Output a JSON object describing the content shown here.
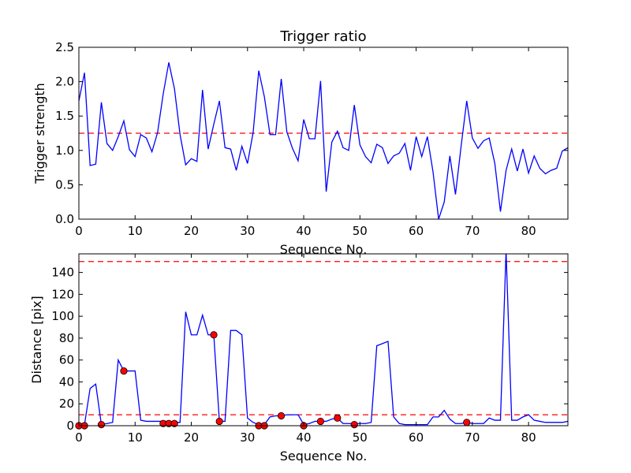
{
  "chart_data": [
    {
      "type": "line",
      "title": "Trigger ratio",
      "xlabel": "Sequence No.",
      "ylabel": "Trigger strength",
      "xlim": [
        0,
        87
      ],
      "ylim": [
        0,
        2.5
      ],
      "xticks": [
        "0",
        "10",
        "20",
        "30",
        "40",
        "50",
        "60",
        "70",
        "80"
      ],
      "yticks": [
        "0.0",
        "0.5",
        "1.0",
        "1.5",
        "2.0",
        "2.5"
      ],
      "grid": false,
      "colors": {
        "line": "#0000ff",
        "threshold": "#ff0000"
      },
      "threshold": 1.25,
      "series": [
        {
          "x": [
            0,
            1,
            2,
            3,
            4,
            5,
            6,
            7,
            8,
            9,
            10,
            11,
            12,
            13,
            14,
            15,
            16,
            17,
            18,
            19,
            20,
            21,
            22,
            23,
            24,
            25,
            26,
            27,
            28,
            29,
            30,
            31,
            32,
            33,
            34,
            35,
            36,
            37,
            38,
            39,
            40,
            41,
            42,
            43,
            44,
            45,
            46,
            47,
            48,
            49,
            50,
            51,
            52,
            53,
            54,
            55,
            56,
            57,
            58,
            59,
            60,
            61,
            62,
            63,
            64,
            65,
            66,
            67,
            68,
            69,
            70,
            71,
            72,
            73,
            74,
            75,
            76,
            77,
            78,
            79,
            80,
            81,
            82,
            83,
            84,
            85,
            86,
            87
          ],
          "values": [
            1.72,
            2.13,
            0.78,
            0.8,
            1.7,
            1.1,
            1.0,
            1.2,
            1.43,
            1.01,
            0.91,
            1.23,
            1.18,
            0.98,
            1.26,
            1.82,
            2.28,
            1.9,
            1.23,
            0.79,
            0.88,
            0.84,
            1.88,
            1.02,
            1.38,
            1.72,
            1.04,
            1.02,
            0.71,
            1.06,
            0.81,
            1.26,
            2.16,
            1.78,
            1.23,
            1.23,
            2.04,
            1.27,
            1.03,
            0.85,
            1.45,
            1.17,
            1.17,
            2.01,
            0.4,
            1.12,
            1.28,
            1.04,
            1.0,
            1.66,
            1.08,
            0.91,
            0.82,
            1.09,
            1.04,
            0.81,
            0.92,
            0.96,
            1.1,
            0.71,
            1.2,
            0.91,
            1.2,
            0.69,
            0.0,
            0.25,
            0.92,
            0.36,
            1.06,
            1.72,
            1.18,
            1.03,
            1.14,
            1.18,
            0.81,
            0.11,
            0.71,
            1.02,
            0.7,
            1.02,
            0.67,
            0.92,
            0.74,
            0.66,
            0.71,
            0.74,
            0.99,
            1.04
          ]
        }
      ]
    },
    {
      "type": "line",
      "title": "",
      "xlabel": "Sequence No.",
      "ylabel": "Distance [pix]",
      "xlim": [
        0,
        87
      ],
      "ylim": [
        0,
        157
      ],
      "xticks": [
        "0",
        "10",
        "20",
        "30",
        "40",
        "50",
        "60",
        "70",
        "80"
      ],
      "yticks": [
        "0",
        "20",
        "40",
        "60",
        "80",
        "100",
        "120",
        "140"
      ],
      "grid": false,
      "colors": {
        "line": "#0000ff",
        "threshold": "#ff0000",
        "marker": "#ff0000"
      },
      "thresholds": [
        150,
        10
      ],
      "series": [
        {
          "x": [
            0,
            1,
            2,
            3,
            4,
            5,
            6,
            7,
            8,
            9,
            10,
            11,
            12,
            13,
            14,
            15,
            16,
            17,
            18,
            19,
            20,
            21,
            22,
            23,
            24,
            25,
            26,
            27,
            28,
            29,
            30,
            31,
            32,
            33,
            34,
            35,
            36,
            37,
            38,
            39,
            40,
            41,
            42,
            43,
            44,
            45,
            46,
            47,
            48,
            49,
            50,
            51,
            52,
            53,
            54,
            55,
            56,
            57,
            58,
            59,
            60,
            61,
            62,
            63,
            64,
            65,
            66,
            67,
            68,
            69,
            70,
            71,
            72,
            73,
            74,
            75,
            76,
            77,
            78,
            79,
            80,
            81,
            82,
            83,
            84,
            85,
            86,
            87
          ],
          "values": [
            1,
            1,
            34,
            38,
            1,
            2,
            3,
            60,
            50,
            50,
            50,
            5,
            4,
            4,
            4,
            4,
            4,
            3,
            3,
            104,
            83,
            83,
            101,
            83,
            83,
            4,
            4,
            87,
            87,
            83,
            7,
            3,
            1,
            1,
            8,
            9,
            9,
            10,
            10,
            10,
            1,
            2,
            4,
            4,
            4,
            6,
            7,
            2,
            2,
            2,
            2,
            2,
            3,
            73,
            75,
            77,
            8,
            2,
            1,
            1,
            1,
            1,
            1,
            8,
            8,
            14,
            6,
            2,
            2,
            3,
            2,
            2,
            2,
            7,
            5,
            5,
            160,
            5,
            5,
            8,
            10,
            5,
            4,
            3,
            3,
            3,
            3,
            4
          ]
        }
      ],
      "markers": {
        "x": [
          0,
          1,
          4,
          8,
          15,
          16,
          17,
          24,
          25,
          32,
          33,
          36,
          40,
          43,
          46,
          49,
          69
        ],
        "values": [
          0,
          0,
          1,
          50,
          2,
          2,
          2,
          83,
          4,
          0,
          0,
          9,
          0,
          4,
          7,
          1,
          3
        ]
      }
    }
  ]
}
